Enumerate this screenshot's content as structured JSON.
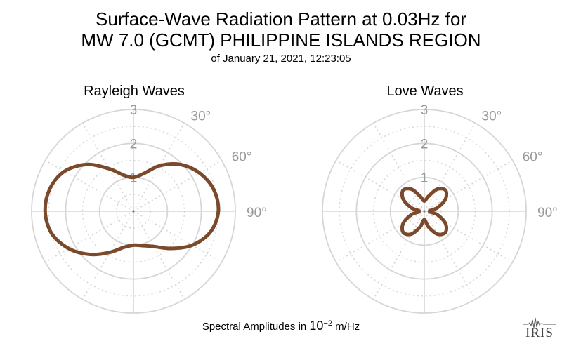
{
  "title": {
    "line1": "Surface-Wave Radiation Pattern at 0.03Hz for",
    "line2": "MW 7.0 (GCMT) PHILIPPINE ISLANDS REGION",
    "subtitle": "of January 21, 2021, 12:23:05"
  },
  "footer": {
    "prefix": "Spectral Amplitudes in ",
    "base": "10",
    "exponent": "−2",
    "unit": " m/Hz"
  },
  "logo": {
    "text": "IRIS"
  },
  "colors": {
    "curve": "#7b4a2c",
    "grid": "#d6d6d6",
    "tick": "#999999"
  },
  "chart_data": [
    {
      "type": "polar-line",
      "title": "Rayleigh Waves",
      "rlim": [
        0,
        3
      ],
      "radial_ticks": [
        "1",
        "2",
        "3"
      ],
      "angle_ticks": [
        "30°",
        "60°",
        "90°"
      ],
      "grid": true,
      "theta_deg": [
        0,
        15,
        30,
        45,
        60,
        75,
        90,
        105,
        120,
        135,
        150,
        165,
        180,
        195,
        210,
        225,
        240,
        255,
        270,
        285,
        300,
        315,
        330,
        345
      ],
      "amplitude": [
        1.0,
        1.15,
        1.55,
        1.95,
        2.25,
        2.45,
        2.5,
        2.35,
        2.0,
        1.55,
        1.2,
        1.05,
        1.0,
        1.1,
        1.4,
        1.8,
        2.2,
        2.5,
        2.6,
        2.55,
        2.35,
        1.95,
        1.45,
        1.1
      ]
    },
    {
      "type": "polar-line",
      "title": "Love Waves",
      "rlim": [
        0,
        3
      ],
      "radial_ticks": [
        "1",
        "2",
        "3"
      ],
      "angle_ticks": [
        "30°",
        "60°",
        "90°"
      ],
      "grid": true,
      "theta_deg": [
        0,
        15,
        30,
        45,
        60,
        75,
        90,
        105,
        120,
        135,
        150,
        165,
        180,
        195,
        210,
        225,
        240,
        255,
        270,
        285,
        300,
        315,
        330,
        345
      ],
      "amplitude": [
        0.3,
        0.45,
        0.75,
        0.88,
        0.72,
        0.4,
        0.15,
        0.4,
        0.72,
        0.88,
        0.78,
        0.48,
        0.25,
        0.48,
        0.78,
        0.88,
        0.72,
        0.4,
        0.15,
        0.4,
        0.72,
        0.88,
        0.75,
        0.45
      ]
    }
  ]
}
